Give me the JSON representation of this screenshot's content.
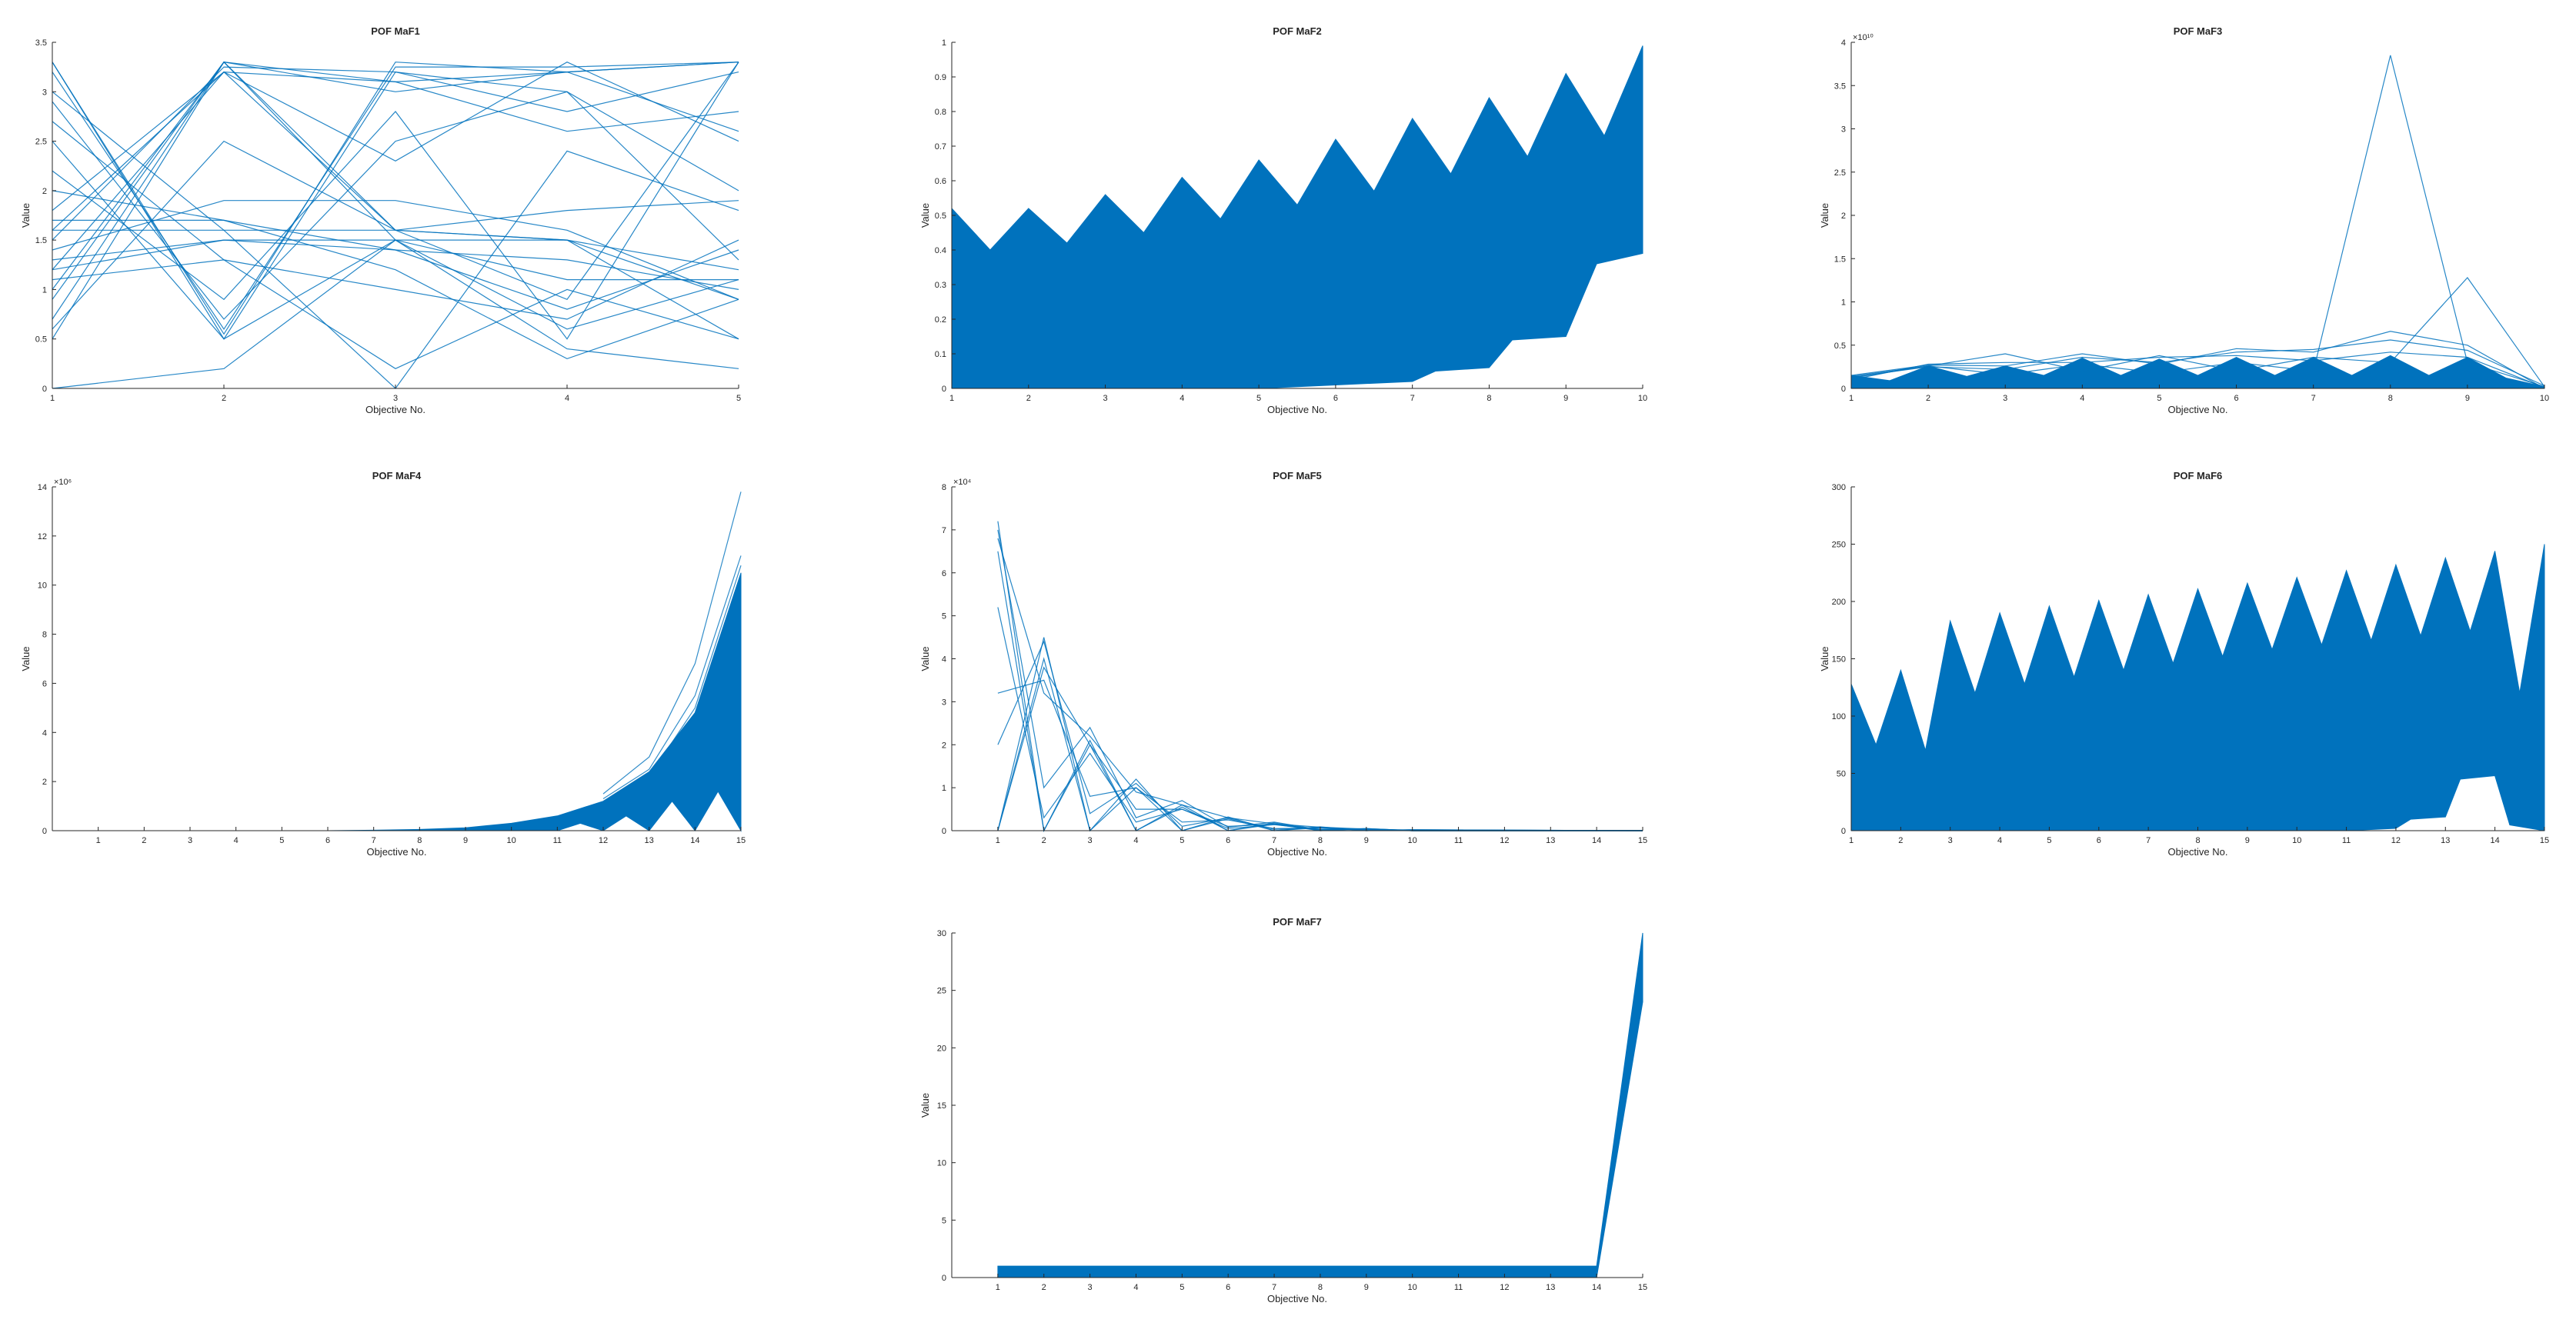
{
  "colors": {
    "line": "#0072BD",
    "axis": "#262626",
    "background": "#ffffff"
  },
  "chart_data": [
    {
      "id": "maf1",
      "type": "line",
      "title": "POF MaF1",
      "xlabel": "Objective No.",
      "ylabel": "Value",
      "x": [
        1,
        2,
        3,
        4,
        5
      ],
      "xlim": [
        1,
        5
      ],
      "xticks": [
        "1",
        "2",
        "3",
        "4",
        "5"
      ],
      "ylim": [
        0,
        3.5
      ],
      "yticks": [
        "0",
        "0.5",
        "1",
        "1.5",
        "2",
        "2.5",
        "3",
        "3.5"
      ],
      "exponent": "",
      "series": [
        {
          "values": [
            0.7,
            3.3,
            1.5,
            0.6,
            1.1
          ]
        },
        {
          "values": [
            1.0,
            3.3,
            1.6,
            0.9,
            3.3
          ]
        },
        {
          "values": [
            3.3,
            0.55,
            3.3,
            3.2,
            3.3
          ]
        },
        {
          "values": [
            3.2,
            0.6,
            3.25,
            3.25,
            3.3
          ]
        },
        {
          "values": [
            2.9,
            0.7,
            2.5,
            3.0,
            2.0
          ]
        },
        {
          "values": [
            1.5,
            3.25,
            3.2,
            2.8,
            3.2
          ]
        },
        {
          "values": [
            1.2,
            3.2,
            2.3,
            3.3,
            2.5
          ]
        },
        {
          "values": [
            0.5,
            3.3,
            3.1,
            2.6,
            2.8
          ]
        },
        {
          "values": [
            1.8,
            3.2,
            1.6,
            1.5,
            0.5
          ]
        },
        {
          "values": [
            1.6,
            1.6,
            1.6,
            1.5,
            1.2
          ]
        },
        {
          "values": [
            1.3,
            1.5,
            1.4,
            1.3,
            1.0
          ]
        },
        {
          "values": [
            1.4,
            1.9,
            1.9,
            1.6,
            0.9
          ]
        },
        {
          "values": [
            2.7,
            1.3,
            1.0,
            0.7,
            1.5
          ]
        },
        {
          "values": [
            1.1,
            1.3,
            0.2,
            1.0,
            0.5
          ]
        },
        {
          "values": [
            0.0,
            0.2,
            1.5,
            1.1,
            1.1
          ]
        },
        {
          "values": [
            2.5,
            0.5,
            1.5,
            0.4,
            0.2
          ]
        },
        {
          "values": [
            3.0,
            1.6,
            0.0,
            2.4,
            1.8
          ]
        },
        {
          "values": [
            2.0,
            1.7,
            1.4,
            0.8,
            1.4
          ]
        },
        {
          "values": [
            1.6,
            3.2,
            3.1,
            3.2,
            3.3
          ]
        },
        {
          "values": [
            3.3,
            0.5,
            3.2,
            3.0,
            1.3
          ]
        },
        {
          "values": [
            1.2,
            1.5,
            1.5,
            1.5,
            0.9
          ]
        },
        {
          "values": [
            0.9,
            3.3,
            3.0,
            3.2,
            2.6
          ]
        },
        {
          "values": [
            2.2,
            0.9,
            2.8,
            0.5,
            3.3
          ]
        },
        {
          "values": [
            0.6,
            2.5,
            1.6,
            1.8,
            1.9
          ]
        },
        {
          "values": [
            1.7,
            1.7,
            1.2,
            0.3,
            0.9
          ]
        }
      ]
    },
    {
      "id": "maf2",
      "type": "area",
      "title": "POF MaF2",
      "xlabel": "Objective No.",
      "ylabel": "Value",
      "xlim": [
        1,
        10
      ],
      "xticks": [
        "1",
        "2",
        "3",
        "4",
        "5",
        "6",
        "7",
        "8",
        "9",
        "10"
      ],
      "ylim": [
        0,
        1
      ],
      "yticks": [
        "0",
        "0.1",
        "0.2",
        "0.3",
        "0.4",
        "0.5",
        "0.6",
        "0.7",
        "0.8",
        "0.9",
        "1"
      ],
      "exponent": "",
      "upper": {
        "x": [
          1,
          1.5,
          2,
          2.5,
          3,
          3.5,
          4,
          4.5,
          5,
          5.5,
          6,
          6.5,
          7,
          7.5,
          8,
          8.5,
          9,
          9.5,
          10
        ],
        "values": [
          0.52,
          0.4,
          0.52,
          0.42,
          0.56,
          0.45,
          0.61,
          0.49,
          0.66,
          0.53,
          0.72,
          0.57,
          0.78,
          0.62,
          0.84,
          0.67,
          0.91,
          0.73,
          0.99
        ]
      },
      "lower": {
        "x": [
          1,
          5,
          6,
          7,
          7.3,
          8,
          8.3,
          9,
          9.4,
          10
        ],
        "values": [
          0,
          0,
          0.01,
          0.02,
          0.05,
          0.06,
          0.14,
          0.15,
          0.36,
          0.39
        ]
      }
    },
    {
      "id": "maf3",
      "type": "line",
      "title": "POF MaF3",
      "xlabel": "Objective No.",
      "ylabel": "Value",
      "x": [
        1,
        2,
        3,
        4,
        5,
        6,
        7,
        8,
        9,
        10
      ],
      "xlim": [
        1,
        10
      ],
      "xticks": [
        "1",
        "2",
        "3",
        "4",
        "5",
        "6",
        "7",
        "8",
        "9",
        "10"
      ],
      "ylim": [
        0,
        4
      ],
      "yticks": [
        "0",
        "0.5",
        "1",
        "1.5",
        "2",
        "2.5",
        "3",
        "3.5",
        "4"
      ],
      "exponent": "10",
      "series": [
        {
          "values": [
            0.14,
            0.26,
            0.16,
            0.28,
            0.18,
            0.3,
            0.2,
            3.85,
            0.3,
            0.02
          ]
        },
        {
          "values": [
            0.12,
            0.26,
            0.4,
            0.2,
            0.38,
            0.2,
            0.36,
            0.3,
            1.28,
            0.02
          ]
        },
        {
          "values": [
            0.15,
            0.27,
            0.26,
            0.4,
            0.28,
            0.46,
            0.42,
            0.66,
            0.5,
            0.0
          ]
        },
        {
          "values": [
            0.13,
            0.25,
            0.22,
            0.36,
            0.3,
            0.42,
            0.45,
            0.56,
            0.44,
            0.03
          ]
        },
        {
          "values": [
            0.1,
            0.28,
            0.3,
            0.3,
            0.36,
            0.38,
            0.32,
            0.42,
            0.36,
            0.01
          ]
        }
      ],
      "band": {
        "x": [
          1,
          1.5,
          2,
          2.5,
          3,
          3.5,
          4,
          4.5,
          5,
          5.5,
          6,
          6.5,
          7,
          7.5,
          8,
          8.5,
          9,
          9.5,
          10
        ],
        "values": [
          0.15,
          0.09,
          0.26,
          0.14,
          0.26,
          0.15,
          0.35,
          0.15,
          0.34,
          0.15,
          0.36,
          0.15,
          0.36,
          0.15,
          0.38,
          0.15,
          0.36,
          0.12,
          0.02
        ]
      }
    },
    {
      "id": "maf4",
      "type": "area",
      "title": "POF MaF4",
      "xlabel": "Objective No.",
      "ylabel": "Value",
      "xlim": [
        0,
        15
      ],
      "xticks": [
        "1",
        "2",
        "3",
        "4",
        "5",
        "6",
        "7",
        "8",
        "9",
        "10",
        "11",
        "12",
        "13",
        "14",
        "15"
      ],
      "ylim": [
        0,
        14
      ],
      "yticks": [
        "0",
        "2",
        "4",
        "6",
        "8",
        "10",
        "12",
        "14"
      ],
      "exponent": "6",
      "upper": {
        "x": [
          1,
          6,
          7,
          8,
          9,
          10,
          11,
          12,
          13,
          14,
          15
        ],
        "values": [
          0,
          0,
          0.02,
          0.05,
          0.12,
          0.3,
          0.6,
          1.2,
          2.4,
          4.8,
          10.5
        ]
      },
      "lower": {
        "x": [
          1,
          11,
          11.5,
          12,
          12.5,
          13,
          13.5,
          14,
          14.5,
          15
        ],
        "values": [
          0,
          0,
          0.3,
          0,
          0.6,
          0,
          1.2,
          0,
          1.6,
          0
        ]
      },
      "outliers": [
        {
          "x": [
            12,
            13,
            14,
            15
          ],
          "values": [
            1.5,
            3.0,
            6.8,
            13.8
          ]
        },
        {
          "x": [
            12,
            13,
            14,
            15
          ],
          "values": [
            1.3,
            2.5,
            5.5,
            11.2
          ]
        },
        {
          "x": [
            13,
            14,
            15
          ],
          "values": [
            2.2,
            5.0,
            10.8
          ]
        }
      ]
    },
    {
      "id": "maf5",
      "type": "line",
      "title": "POF MaF5",
      "xlabel": "Objective No.",
      "ylabel": "Value",
      "xlim": [
        0,
        15
      ],
      "xticks": [
        "1",
        "2",
        "3",
        "4",
        "5",
        "6",
        "7",
        "8",
        "9",
        "10",
        "11",
        "12",
        "13",
        "14",
        "15"
      ],
      "ylim": [
        0,
        8
      ],
      "yticks": [
        "0",
        "1",
        "2",
        "3",
        "4",
        "5",
        "6",
        "7",
        "8"
      ],
      "exponent": "4",
      "x": [
        1,
        2,
        3,
        4,
        5,
        6,
        7,
        8,
        9,
        10,
        15
      ],
      "series": [
        {
          "values": [
            7.2,
            0,
            2.1,
            0,
            0.6,
            0,
            0.18,
            0,
            0.05,
            0,
            0
          ]
        },
        {
          "values": [
            0,
            4.5,
            0,
            1.2,
            0,
            0.32,
            0,
            0.09,
            0,
            0.02,
            0
          ]
        },
        {
          "values": [
            6.5,
            0,
            2.0,
            0,
            0.55,
            0,
            0.15,
            0,
            0.04,
            0,
            0
          ]
        },
        {
          "values": [
            0,
            4.0,
            0,
            1.0,
            0,
            0.28,
            0,
            0.07,
            0,
            0.02,
            0
          ]
        },
        {
          "values": [
            5.2,
            0.3,
            1.8,
            0.2,
            0.5,
            0.05,
            0.14,
            0.02,
            0.03,
            0,
            0
          ]
        },
        {
          "values": [
            3.2,
            3.5,
            0.8,
            1.0,
            0.2,
            0.25,
            0.05,
            0.06,
            0.01,
            0,
            0
          ]
        },
        {
          "values": [
            6.8,
            3.2,
            2.2,
            0.9,
            0.6,
            0.3,
            0.16,
            0.08,
            0.04,
            0.01,
            0
          ]
        },
        {
          "values": [
            0,
            3.8,
            2.0,
            0.5,
            0.5,
            0.1,
            0.15,
            0.03,
            0.04,
            0,
            0
          ]
        },
        {
          "values": [
            2.0,
            4.4,
            0.4,
            1.1,
            0.1,
            0.3,
            0.03,
            0.08,
            0.01,
            0.02,
            0
          ]
        },
        {
          "values": [
            7.0,
            1.0,
            2.4,
            0.3,
            0.7,
            0.08,
            0.2,
            0.02,
            0.05,
            0,
            0
          ]
        }
      ]
    },
    {
      "id": "maf6",
      "type": "area",
      "title": "POF MaF6",
      "xlabel": "Objective No.",
      "ylabel": "Value",
      "xlim": [
        1,
        15
      ],
      "xticks": [
        "1",
        "2",
        "3",
        "4",
        "5",
        "6",
        "7",
        "8",
        "9",
        "10",
        "11",
        "12",
        "13",
        "14",
        "15"
      ],
      "ylim": [
        0,
        300
      ],
      "yticks": [
        "0",
        "50",
        "100",
        "150",
        "200",
        "250",
        "300"
      ],
      "exponent": "",
      "upper": {
        "x": [
          1,
          1.5,
          2,
          2.5,
          3,
          3.5,
          4,
          4.5,
          5,
          5.5,
          6,
          6.5,
          7,
          7.5,
          8,
          8.5,
          9,
          9.5,
          10,
          10.5,
          11,
          11.5,
          12,
          12.5,
          13,
          13.5,
          14,
          14.5,
          15
        ],
        "values": [
          128,
          75,
          140,
          70,
          183,
          120,
          190,
          128,
          196,
          134,
          201,
          140,
          206,
          146,
          211,
          152,
          216,
          158,
          221,
          162,
          227,
          166,
          232,
          170,
          238,
          174,
          244,
          120,
          250
        ]
      },
      "lower": {
        "x": [
          1,
          11,
          12,
          12.3,
          13,
          13.3,
          14,
          14.3,
          15
        ],
        "values": [
          0,
          0,
          2,
          10,
          12,
          45,
          48,
          5,
          0
        ]
      }
    },
    {
      "id": "maf7",
      "type": "area",
      "title": "POF MaF7",
      "xlabel": "Objective No.",
      "ylabel": "Value",
      "xlim": [
        0,
        15
      ],
      "xticks": [
        "1",
        "2",
        "3",
        "4",
        "5",
        "6",
        "7",
        "8",
        "9",
        "10",
        "11",
        "12",
        "13",
        "14",
        "15"
      ],
      "ylim": [
        0,
        30
      ],
      "yticks": [
        "0",
        "5",
        "10",
        "15",
        "20",
        "25",
        "30"
      ],
      "exponent": "",
      "upper": {
        "x": [
          1,
          14,
          15
        ],
        "values": [
          1.0,
          1.0,
          30
        ]
      },
      "lower": {
        "x": [
          1,
          14,
          15
        ],
        "values": [
          0.0,
          0.0,
          24
        ]
      }
    }
  ]
}
